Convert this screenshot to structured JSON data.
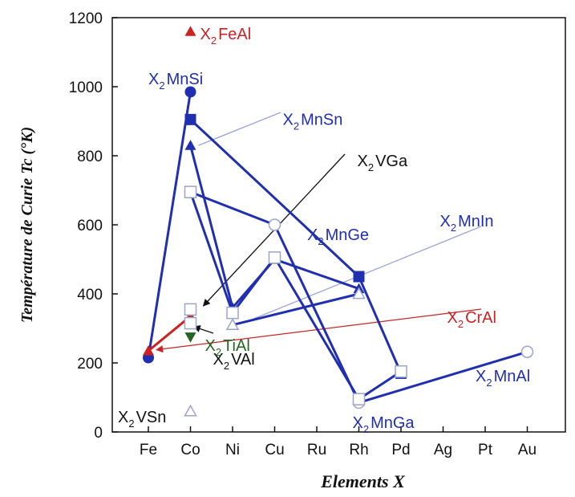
{
  "chart_data": {
    "type": "line",
    "title": "",
    "xlabel": "Elements X",
    "ylabel": "Température de Curie Tc (°K)",
    "categories": [
      "Fe",
      "Co",
      "Ni",
      "Cu",
      "Ru",
      "Rh",
      "Pd",
      "Ag",
      "Pt",
      "Au"
    ],
    "ylim": [
      0,
      1200
    ],
    "yticks": [
      0,
      200,
      400,
      600,
      800,
      1000,
      1200
    ],
    "grid": false,
    "legend": "none",
    "colors": {
      "blue": "#1f2fb0",
      "red": "#cc2222",
      "green": "#226622",
      "black": "#111111",
      "gray": "#8a8aa0",
      "leader_blue": "#9aa4dd"
    },
    "series": [
      {
        "marker": "circle-filled",
        "color": "#1f2fb0",
        "points": [
          [
            "Fe",
            215
          ],
          [
            "Co",
            985
          ]
        ]
      },
      {
        "marker": "square-filled",
        "color": "#1f2fb0",
        "points": [
          [
            "Co",
            905
          ],
          [
            "Rh",
            450
          ],
          [
            "Pd",
            170
          ]
        ]
      },
      {
        "marker": "triangle-filled",
        "color": "#1f2fb0",
        "points": [
          [
            "Co",
            830
          ],
          [
            "Ni",
            360
          ],
          [
            "Cu",
            500
          ],
          [
            "Rh",
            415
          ]
        ]
      },
      {
        "marker": "circle-open",
        "color": "#1f2fb0",
        "points": [
          [
            "Co",
            695
          ],
          [
            "Cu",
            600
          ],
          [
            "Rh",
            85
          ],
          [
            "Au",
            232
          ]
        ]
      },
      {
        "marker": "square-open",
        "color": "#1f2fb0",
        "points": [
          [
            "Co",
            695
          ],
          [
            "Ni",
            345
          ],
          [
            "Cu",
            505
          ],
          [
            "Rh",
            95
          ],
          [
            "Pd",
            175
          ]
        ]
      },
      {
        "marker": "triangle-open",
        "color": "#1f2fb0",
        "points": [
          [
            "Ni",
            310
          ],
          [
            "Rh",
            400
          ]
        ]
      },
      {
        "marker": "triangle-filled",
        "color": "#cc2222",
        "points": [
          [
            "Fe",
            235
          ],
          [
            "Co",
            335
          ]
        ]
      },
      {
        "marker": "triangle-filled",
        "color": "#cc2222",
        "points": [
          [
            "Co",
            1160
          ]
        ]
      },
      {
        "marker": "triangle-down-filled",
        "color": "#226622",
        "points": [
          [
            "Co",
            275
          ]
        ]
      },
      {
        "marker": "triangle-open",
        "color": "#8a8aa0",
        "points": [
          [
            "Co",
            60
          ]
        ]
      },
      {
        "marker": "square-open",
        "color": "#8a8aa0",
        "points": [
          [
            "Co",
            355
          ],
          [
            "Co",
            315
          ]
        ]
      }
    ],
    "annotations": [
      {
        "base": "X",
        "sub": "2",
        "name": "FeAl",
        "color": "#cc2222",
        "at": [
          "Co",
          1160
        ]
      },
      {
        "base": "X",
        "sub": "2",
        "name": "MnSi",
        "color": "#1f2fb0",
        "at": [
          "Fe",
          1030
        ]
      },
      {
        "base": "X",
        "sub": "2",
        "name": "MnSn",
        "color": "#1f2fb0",
        "at": [
          "Cu",
          890
        ]
      },
      {
        "base": "X",
        "sub": "2",
        "name": "VGa",
        "color": "#111111",
        "at": [
          "Rh",
          770
        ]
      },
      {
        "base": "X",
        "sub": "2",
        "name": "MnGe",
        "color": "#1f2fb0",
        "at": [
          "Ru",
          570
        ]
      },
      {
        "base": "X",
        "sub": "2",
        "name": "MnIn",
        "color": "#1f2fb0",
        "at": [
          "Ag",
          595
        ]
      },
      {
        "base": "X",
        "sub": "2",
        "name": "CrAl",
        "color": "#cc2222",
        "at": [
          "Ag",
          340
        ]
      },
      {
        "base": "X",
        "sub": "2",
        "name": "VAl",
        "color": "#111111",
        "at": [
          "Co",
          230
        ]
      },
      {
        "base": "X",
        "sub": "2",
        "name": "TiAl",
        "color": "#226622",
        "at": [
          "Co",
          275
        ]
      },
      {
        "base": "X",
        "sub": "2",
        "name": "MnAl",
        "color": "#1f2fb0",
        "at": [
          "Pt",
          175
        ]
      },
      {
        "base": "X",
        "sub": "2",
        "name": "VSn",
        "color": "#111111",
        "at": [
          "Fe",
          60
        ]
      },
      {
        "base": "X",
        "sub": "2",
        "name": "MnGa",
        "color": "#1f2fb0",
        "at": [
          "Rh",
          35
        ]
      }
    ]
  }
}
